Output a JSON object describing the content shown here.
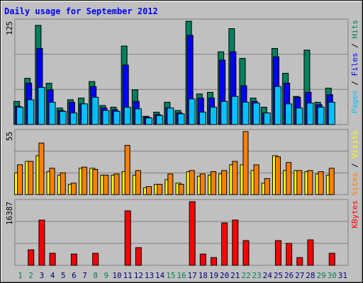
{
  "chart_data": [
    {
      "type": "bar",
      "title": "Daily usage for September 2012",
      "ylim": [
        0,
        125
      ],
      "yticks": [
        125
      ],
      "series": [
        {
          "name": "Hits",
          "color": "#00805c",
          "values": [
            28,
            56,
            120,
            50,
            20,
            30,
            32,
            52,
            23,
            21,
            95,
            42,
            10,
            15,
            27,
            17,
            125,
            37,
            39,
            88,
            116,
            80,
            32,
            21,
            92,
            62,
            34,
            90,
            27,
            44,
            0
          ]
        },
        {
          "name": "Files",
          "color": "#0000ff",
          "values": [
            22,
            50,
            92,
            42,
            17,
            27,
            25,
            46,
            20,
            18,
            72,
            28,
            9,
            12,
            20,
            14,
            108,
            32,
            32,
            78,
            88,
            47,
            28,
            14,
            82,
            50,
            33,
            39,
            24,
            36,
            0
          ]
        },
        {
          "name": "Pages",
          "color": "#00c0ff",
          "values": [
            21,
            30,
            45,
            27,
            16,
            14,
            25,
            33,
            17,
            16,
            21,
            19,
            8,
            11,
            20,
            13,
            31,
            15,
            21,
            28,
            34,
            27,
            26,
            14,
            46,
            25,
            20,
            26,
            21,
            27,
            0
          ]
        }
      ]
    },
    {
      "type": "bar",
      "ylim": [
        0,
        55
      ],
      "yticks": [
        55
      ],
      "series": [
        {
          "name": "Visits",
          "color": "#ffff00",
          "values": [
            19,
            29,
            34,
            20,
            17,
            9,
            23,
            23,
            17,
            17,
            20,
            17,
            6,
            9,
            13,
            10,
            20,
            16,
            17,
            18,
            26,
            26,
            21,
            10,
            34,
            21,
            21,
            20,
            18,
            17,
            0
          ]
        },
        {
          "name": "Sites",
          "color": "#ff8000",
          "values": [
            26,
            29,
            45,
            23,
            19,
            10,
            24,
            22,
            17,
            18,
            43,
            21,
            7,
            9,
            18,
            9,
            21,
            18,
            20,
            21,
            29,
            55,
            26,
            14,
            33,
            28,
            21,
            21,
            20,
            23,
            0
          ]
        }
      ]
    },
    {
      "type": "bar",
      "ylim": [
        0,
        16387
      ],
      "yticks": [
        16387
      ],
      "categories": [
        "1",
        "2",
        "3",
        "4",
        "5",
        "6",
        "7",
        "8",
        "9",
        "10",
        "11",
        "12",
        "13",
        "14",
        "15",
        "16",
        "17",
        "18",
        "19",
        "20",
        "21",
        "22",
        "23",
        "24",
        "25",
        "26",
        "27",
        "28",
        "29",
        "30",
        "31"
      ],
      "category_colors": [
        "#00805c",
        "#00805c",
        "#000080",
        "#000080",
        "#000080",
        "#000080",
        "#000080",
        "#00805c",
        "#00805c",
        "#000080",
        "#000080",
        "#000080",
        "#000080",
        "#000080",
        "#00805c",
        "#00805c",
        "#000080",
        "#000080",
        "#000080",
        "#000080",
        "#000080",
        "#00805c",
        "#00805c",
        "#000080",
        "#000080",
        "#000080",
        "#000080",
        "#000080",
        "#00805c",
        "#00805c",
        "#000080"
      ],
      "series": [
        {
          "name": "KBytes",
          "color": "#ff0000",
          "values": [
            0,
            4000,
            11650,
            3100,
            0,
            2900,
            0,
            3100,
            0,
            0,
            14020,
            4550,
            0,
            0,
            0,
            0,
            16387,
            2900,
            2000,
            10920,
            11650,
            6370,
            0,
            0,
            6370,
            5640,
            2000,
            6550,
            0,
            3100,
            0
          ]
        }
      ]
    }
  ]
}
